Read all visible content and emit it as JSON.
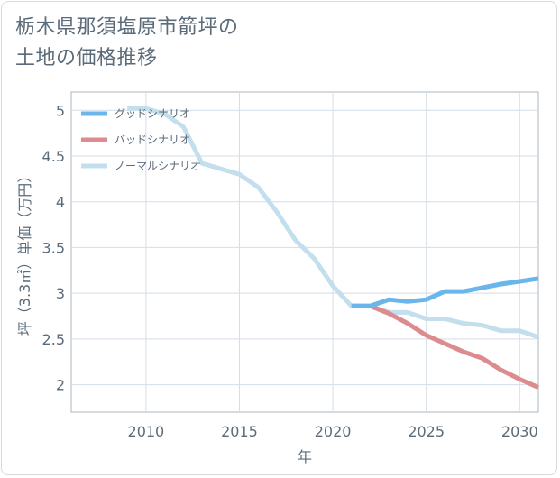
{
  "header": {
    "title_line1": "栃木県那須塩原市箭坪の",
    "title_line2": "土地の価格推移"
  },
  "chart_data": {
    "type": "line",
    "xlabel": "年",
    "ylabel": "坪（3.3㎡）単価（万円）",
    "xlim": [
      2006,
      2031
    ],
    "ylim": [
      1.7,
      5.2
    ],
    "xticks": [
      2010,
      2015,
      2020,
      2025,
      2030
    ],
    "yticks": [
      2,
      2.5,
      3,
      3.5,
      4,
      4.5,
      5
    ],
    "ytick_labels": [
      "2",
      "2.5",
      "3",
      "3.5",
      "4",
      "4.5",
      "5"
    ],
    "grid": true,
    "legend_position": "top-left",
    "series": [
      {
        "name": "グッドシナリオ",
        "color": "#6ab5ea",
        "x": [
          2021,
          2022,
          2023,
          2024,
          2025,
          2026,
          2027,
          2028,
          2029,
          2030,
          2031
        ],
        "y": [
          2.86,
          2.86,
          2.93,
          2.91,
          2.93,
          3.02,
          3.02,
          3.06,
          3.1,
          3.13,
          3.16
        ]
      },
      {
        "name": "バッドシナリオ",
        "color": "#dc8c8e",
        "x": [
          2021,
          2022,
          2023,
          2024,
          2025,
          2026,
          2027,
          2028,
          2029,
          2030,
          2031
        ],
        "y": [
          2.86,
          2.86,
          2.78,
          2.67,
          2.54,
          2.45,
          2.36,
          2.29,
          2.16,
          2.06,
          1.97
        ]
      },
      {
        "name": "ノーマルシナリオ",
        "color": "#c3dfee",
        "x": [
          2009,
          2010,
          2011,
          2012,
          2013,
          2014,
          2015,
          2016,
          2017,
          2018,
          2019,
          2020,
          2021,
          2022,
          2023,
          2024,
          2025,
          2026,
          2027,
          2028,
          2029,
          2030,
          2031
        ],
        "y": [
          5.02,
          5.02,
          4.96,
          4.82,
          4.42,
          4.36,
          4.3,
          4.16,
          3.89,
          3.58,
          3.38,
          3.08,
          2.86,
          2.86,
          2.79,
          2.79,
          2.72,
          2.72,
          2.67,
          2.65,
          2.59,
          2.59,
          2.52
        ]
      }
    ]
  }
}
